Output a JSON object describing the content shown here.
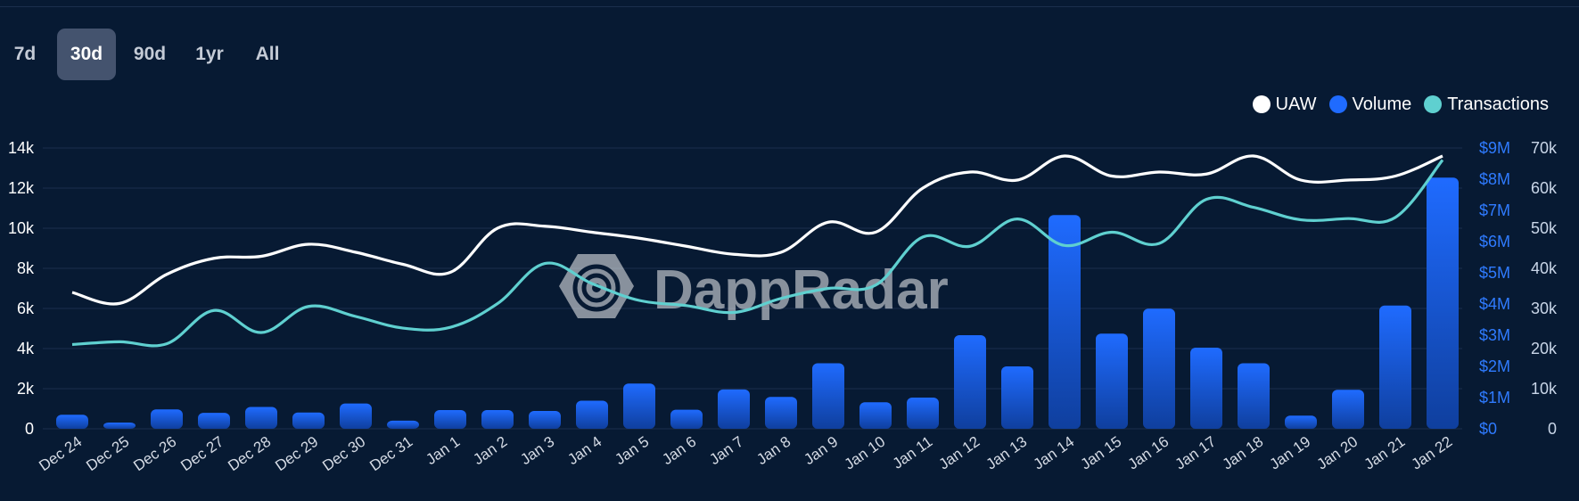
{
  "range_tabs": [
    {
      "label": "7d",
      "active": false
    },
    {
      "label": "30d",
      "active": true
    },
    {
      "label": "90d",
      "active": false
    },
    {
      "label": "1yr",
      "active": false
    },
    {
      "label": "All",
      "active": false
    }
  ],
  "watermark": "DappRadar",
  "colors": {
    "background": "#071a33",
    "uaw": "#ffffff",
    "volume": "#1f6bff",
    "transactions": "#5fd0d0",
    "grid": "#1b2f4d",
    "active_tab": "#44536e"
  },
  "chart_data": {
    "type": "bar",
    "categories": [
      "Dec 24",
      "Dec 25",
      "Dec 26",
      "Dec 27",
      "Dec 28",
      "Dec 29",
      "Dec 30",
      "Dec 31",
      "Jan 1",
      "Jan 2",
      "Jan 3",
      "Jan 4",
      "Jan 5",
      "Jan 6",
      "Jan 7",
      "Jan 8",
      "Jan 9",
      "Jan 10",
      "Jan 11",
      "Jan 12",
      "Jan 13",
      "Jan 14",
      "Jan 15",
      "Jan 16",
      "Jan 17",
      "Jan 18",
      "Jan 19",
      "Jan 20",
      "Jan 21",
      "Jan 22"
    ],
    "legend": {
      "placement": "top-right",
      "entries": [
        "UAW",
        "Volume",
        "Transactions"
      ]
    },
    "grid": true,
    "series": [
      {
        "name": "UAW",
        "type": "line",
        "axis": "left",
        "color": "#ffffff",
        "values": [
          6800,
          6250,
          7700,
          8500,
          8600,
          9200,
          8800,
          8200,
          7800,
          10000,
          10100,
          9800,
          9500,
          9100,
          8700,
          8800,
          10300,
          9800,
          12000,
          12800,
          12400,
          13600,
          12600,
          12800,
          12700,
          13600,
          12400,
          12400,
          12600,
          13600
        ]
      },
      {
        "name": "Volume",
        "type": "bar",
        "axis": "middle",
        "color": "#1f6bff",
        "values": [
          450000,
          200000,
          620000,
          510000,
          700000,
          520000,
          810000,
          260000,
          600000,
          600000,
          570000,
          900000,
          1450000,
          610000,
          1260000,
          1020000,
          2100000,
          850000,
          1000000,
          3000000,
          2000000,
          6850000,
          3050000,
          3850000,
          2600000,
          2100000,
          420000,
          1250000,
          3950000,
          8050000
        ]
      },
      {
        "name": "Transactions",
        "type": "line",
        "axis": "right",
        "color": "#5fd0d0",
        "values": [
          21000,
          21700,
          21200,
          29500,
          24000,
          30500,
          28000,
          25100,
          25300,
          31200,
          41200,
          36200,
          32000,
          30700,
          29000,
          32500,
          35000,
          35800,
          47800,
          45500,
          52300,
          45700,
          49000,
          46200,
          57200,
          55200,
          52100,
          52400,
          52700,
          67000
        ]
      }
    ],
    "axes": {
      "left": {
        "ylim": [
          0,
          14000
        ],
        "ticks": [
          "0",
          "2k",
          "4k",
          "6k",
          "8k",
          "10k",
          "12k",
          "14k"
        ]
      },
      "middle": {
        "ylim": [
          0,
          9000000
        ],
        "ticks": [
          "$0",
          "$1M",
          "$2M",
          "$3M",
          "$4M",
          "$5M",
          "$6M",
          "$7M",
          "$8M",
          "$9M"
        ]
      },
      "right": {
        "ylim": [
          0,
          70000
        ],
        "ticks": [
          "0",
          "10k",
          "20k",
          "30k",
          "40k",
          "50k",
          "60k",
          "70k"
        ]
      }
    }
  }
}
